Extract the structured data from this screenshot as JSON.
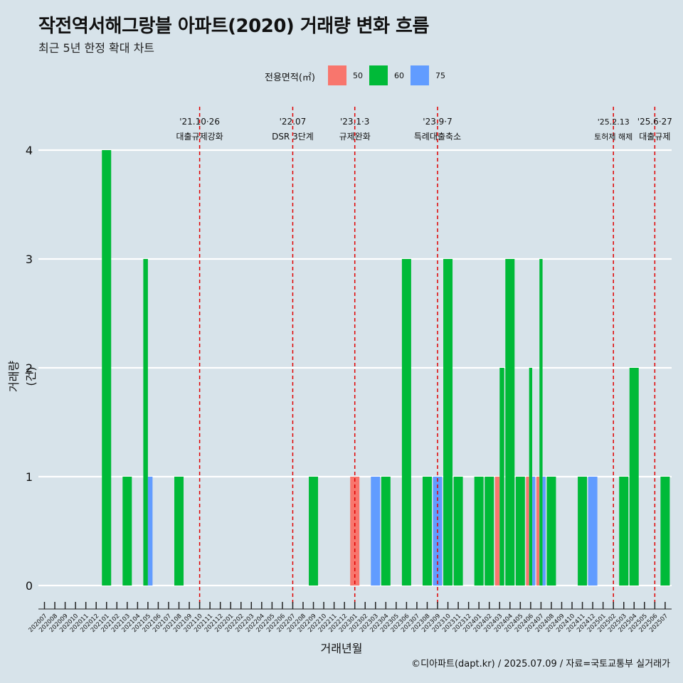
{
  "title": "작전역서해그랑블 아파트(2020) 거래량 변화 흐름",
  "subtitle": "최근 5년 한정 확대 차트",
  "caption": "©디아파트(dapt.kr) / 2025.07.09 / 자료=국토교통부 실거래가",
  "legend": {
    "title": "전용면적(㎡)",
    "items": [
      {
        "label": "50",
        "color": "#f8766d"
      },
      {
        "label": "60",
        "color": "#00ba38"
      },
      {
        "label": "75",
        "color": "#619cff"
      }
    ]
  },
  "annotations": [
    {
      "month": "202110",
      "date": "'21.10·26",
      "label": "대출규제강화"
    },
    {
      "month": "202207",
      "date": "'22.07",
      "label": "DSR 3단계"
    },
    {
      "month": "202301",
      "date": "'23.1·3",
      "label": "규제완화"
    },
    {
      "month": "202309",
      "date": "'23.9·7",
      "label": "특례대출축소"
    },
    {
      "month": "202502",
      "date": "'25.2.13",
      "label": "토허제 해제"
    },
    {
      "month": "202506",
      "date": "'25.6·27",
      "label": "대출규제"
    }
  ],
  "chart_data": {
    "type": "bar",
    "xlabel": "거래년월",
    "ylabel": "거래량(건)",
    "ylim": [
      0,
      4
    ],
    "yticks": [
      0,
      1,
      2,
      3,
      4
    ],
    "grid": true,
    "legend_position": "top",
    "categories": [
      "202007",
      "202008",
      "202009",
      "202010",
      "202011",
      "202012",
      "202101",
      "202102",
      "202103",
      "202104",
      "202105",
      "202106",
      "202107",
      "202108",
      "202109",
      "202110",
      "202111",
      "202112",
      "202201",
      "202202",
      "202203",
      "202204",
      "202205",
      "202206",
      "202207",
      "202208",
      "202209",
      "202210",
      "202211",
      "202212",
      "202301",
      "202302",
      "202303",
      "202304",
      "202305",
      "202306",
      "202307",
      "202308",
      "202309",
      "202310",
      "202311",
      "202312",
      "202401",
      "202402",
      "202403",
      "202404",
      "202405",
      "202406",
      "202407",
      "202408",
      "202409",
      "202410",
      "202411",
      "202412",
      "202501",
      "202502",
      "202503",
      "202504",
      "202505",
      "202506",
      "202507"
    ],
    "bars": [
      {
        "month": "202101",
        "segments": [
          {
            "area": "60",
            "count": 4
          }
        ]
      },
      {
        "month": "202103",
        "segments": [
          {
            "area": "60",
            "count": 1
          }
        ]
      },
      {
        "month": "202105",
        "segments": [
          {
            "area": "60",
            "count": 3
          },
          {
            "area": "75",
            "count": 1
          }
        ]
      },
      {
        "month": "202108",
        "segments": [
          {
            "area": "60",
            "count": 1
          }
        ]
      },
      {
        "month": "202209",
        "segments": [
          {
            "area": "60",
            "count": 1
          }
        ]
      },
      {
        "month": "202301",
        "segments": [
          {
            "area": "50",
            "count": 1
          }
        ]
      },
      {
        "month": "202303",
        "segments": [
          {
            "area": "75",
            "count": 1
          }
        ]
      },
      {
        "month": "202304",
        "segments": [
          {
            "area": "60",
            "count": 1
          }
        ]
      },
      {
        "month": "202306",
        "segments": [
          {
            "area": "60",
            "count": 3
          }
        ]
      },
      {
        "month": "202308",
        "segments": [
          {
            "area": "60",
            "count": 1
          }
        ]
      },
      {
        "month": "202309",
        "segments": [
          {
            "area": "75",
            "count": 1
          }
        ]
      },
      {
        "month": "202310",
        "segments": [
          {
            "area": "60",
            "count": 3
          }
        ]
      },
      {
        "month": "202311",
        "segments": [
          {
            "area": "60",
            "count": 1
          }
        ]
      },
      {
        "month": "202401",
        "segments": [
          {
            "area": "60",
            "count": 1
          }
        ]
      },
      {
        "month": "202402",
        "segments": [
          {
            "area": "60",
            "count": 1
          }
        ]
      },
      {
        "month": "202403",
        "segments": [
          {
            "area": "50",
            "count": 1
          },
          {
            "area": "60",
            "count": 2
          }
        ]
      },
      {
        "month": "202404",
        "segments": [
          {
            "area": "60",
            "count": 3
          }
        ]
      },
      {
        "month": "202405",
        "segments": [
          {
            "area": "60",
            "count": 1
          }
        ]
      },
      {
        "month": "202406",
        "segments": [
          {
            "area": "50",
            "count": 1
          },
          {
            "area": "60",
            "count": 2
          },
          {
            "area": "75",
            "count": 1
          }
        ]
      },
      {
        "month": "202407",
        "segments": [
          {
            "area": "50",
            "count": 1
          },
          {
            "area": "60",
            "count": 3
          },
          {
            "area": "75",
            "count": 1
          }
        ]
      },
      {
        "month": "202408",
        "segments": [
          {
            "area": "60",
            "count": 1
          }
        ]
      },
      {
        "month": "202411",
        "segments": [
          {
            "area": "60",
            "count": 1
          }
        ]
      },
      {
        "month": "202412",
        "segments": [
          {
            "area": "75",
            "count": 1
          }
        ]
      },
      {
        "month": "202503",
        "segments": [
          {
            "area": "60",
            "count": 1
          }
        ]
      },
      {
        "month": "202504",
        "segments": [
          {
            "area": "60",
            "count": 2
          }
        ]
      },
      {
        "month": "202507",
        "segments": [
          {
            "area": "60",
            "count": 1
          }
        ]
      }
    ]
  }
}
